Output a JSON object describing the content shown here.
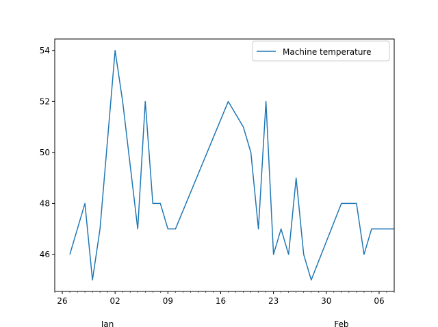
{
  "chart_data": {
    "type": "line",
    "title": "",
    "xlabel": "",
    "ylabel": "",
    "grid": false,
    "legend_position": "upper-right",
    "ylim": [
      44.55,
      54.45
    ],
    "xlim": [
      "2015-12-25",
      "2016-02-08"
    ],
    "y_ticks": [
      46,
      48,
      50,
      52,
      54
    ],
    "x_major_ticks": [
      {
        "date": "2015-12-26",
        "label": "26"
      },
      {
        "date": "2016-01-02",
        "label": "02"
      },
      {
        "date": "2016-01-09",
        "label": "09"
      },
      {
        "date": "2016-01-16",
        "label": "16"
      },
      {
        "date": "2016-01-23",
        "label": "23"
      },
      {
        "date": "2016-01-30",
        "label": "30"
      },
      {
        "date": "2016-02-06",
        "label": "06"
      }
    ],
    "month_labels": [
      {
        "date": "2016-01-01",
        "label": "Jan"
      },
      {
        "date": "2016-02-01",
        "label": "Feb"
      }
    ],
    "series": [
      {
        "name": "Machine temperature",
        "color": "#1f77b4",
        "points": [
          {
            "x": "2015-12-27",
            "y": 46
          },
          {
            "x": "2015-12-29",
            "y": 48
          },
          {
            "x": "2015-12-30",
            "y": 45
          },
          {
            "x": "2015-12-31",
            "y": 47
          },
          {
            "x": "2016-01-02",
            "y": 54
          },
          {
            "x": "2016-01-03",
            "y": 52
          },
          {
            "x": "2016-01-05",
            "y": 47
          },
          {
            "x": "2016-01-06",
            "y": 52
          },
          {
            "x": "2016-01-07",
            "y": 48
          },
          {
            "x": "2016-01-08",
            "y": 48
          },
          {
            "x": "2016-01-09",
            "y": 47
          },
          {
            "x": "2016-01-10",
            "y": 47
          },
          {
            "x": "2016-01-17",
            "y": 52
          },
          {
            "x": "2016-01-19",
            "y": 51
          },
          {
            "x": "2016-01-20",
            "y": 50
          },
          {
            "x": "2016-01-21",
            "y": 47
          },
          {
            "x": "2016-01-22",
            "y": 52
          },
          {
            "x": "2016-01-23",
            "y": 46
          },
          {
            "x": "2016-01-24",
            "y": 47
          },
          {
            "x": "2016-01-25",
            "y": 46
          },
          {
            "x": "2016-01-26",
            "y": 49
          },
          {
            "x": "2016-01-27",
            "y": 46
          },
          {
            "x": "2016-01-28",
            "y": 45
          },
          {
            "x": "2016-02-01",
            "y": 48
          },
          {
            "x": "2016-02-03",
            "y": 48
          },
          {
            "x": "2016-02-04",
            "y": 46
          },
          {
            "x": "2016-02-05",
            "y": 47
          },
          {
            "x": "2016-02-08",
            "y": 47
          }
        ]
      }
    ]
  }
}
